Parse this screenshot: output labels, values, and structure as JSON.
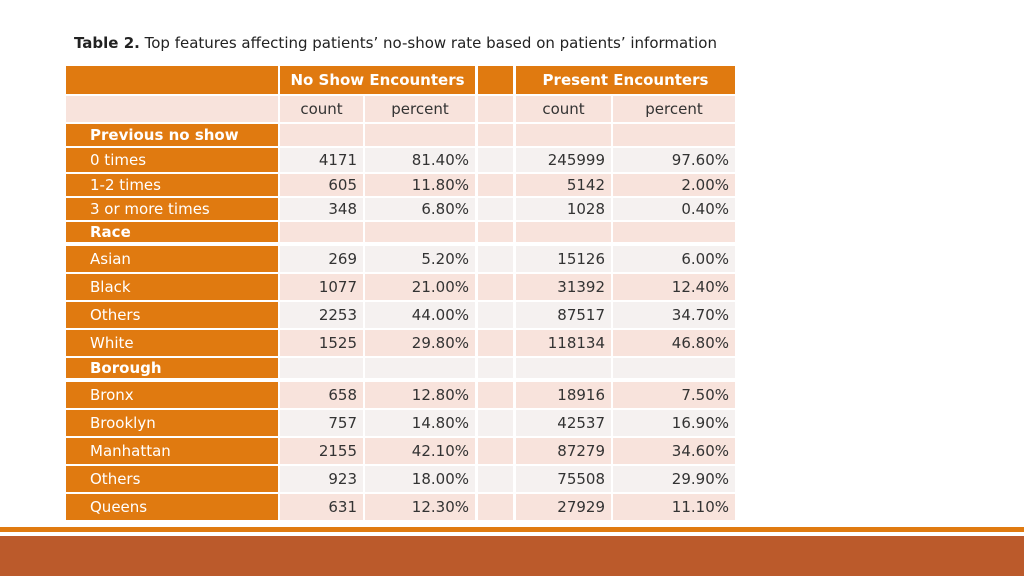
{
  "caption": {
    "label": "Table 2.",
    "text": " Top features affecting patients’ no-show rate based on patients’ information"
  },
  "table": {
    "groups": [
      "No Show Encounters",
      "Present Encounters"
    ],
    "subheaders": [
      "count",
      "percent",
      "count",
      "percent"
    ],
    "rows": [
      {
        "type": "section",
        "label": "Previous no show"
      },
      {
        "type": "data",
        "label": "0 times",
        "values": [
          "4171",
          "81.40%",
          "245999",
          "97.60%"
        ]
      },
      {
        "type": "data",
        "label": "1-2 times",
        "values": [
          "605",
          "11.80%",
          "5142",
          "2.00%"
        ]
      },
      {
        "type": "data",
        "label": "3 or more times",
        "values": [
          "348",
          "6.80%",
          "1028",
          "0.40%"
        ]
      },
      {
        "type": "section",
        "label": "Race"
      },
      {
        "type": "data",
        "label": "Asian",
        "values": [
          "269",
          "5.20%",
          "15126",
          "6.00%"
        ]
      },
      {
        "type": "data",
        "label": "Black",
        "values": [
          "1077",
          "21.00%",
          "31392",
          "12.40%"
        ]
      },
      {
        "type": "data",
        "label": "Others",
        "values": [
          "2253",
          "44.00%",
          "87517",
          "34.70%"
        ]
      },
      {
        "type": "data",
        "label": "White",
        "values": [
          "1525",
          "29.80%",
          "118134",
          "46.80%"
        ]
      },
      {
        "type": "section",
        "label": "Borough"
      },
      {
        "type": "data",
        "label": "Bronx",
        "values": [
          "658",
          "12.80%",
          "18916",
          "7.50%"
        ]
      },
      {
        "type": "data",
        "label": "Brooklyn",
        "values": [
          "757",
          "14.80%",
          "42537",
          "16.90%"
        ]
      },
      {
        "type": "data",
        "label": "Manhattan",
        "values": [
          "2155",
          "42.10%",
          "87279",
          "34.60%"
        ]
      },
      {
        "type": "data",
        "label": "Others",
        "values": [
          "923",
          "18.00%",
          "75508",
          "29.90%"
        ]
      },
      {
        "type": "data",
        "label": "Queens",
        "values": [
          "631",
          "12.30%",
          "27929",
          "11.10%"
        ]
      }
    ]
  },
  "colors": {
    "accent": "#e07a10",
    "footer": "#bb5a2b",
    "row_odd": "#f8e3dc",
    "row_even": "#f5f1f0"
  }
}
